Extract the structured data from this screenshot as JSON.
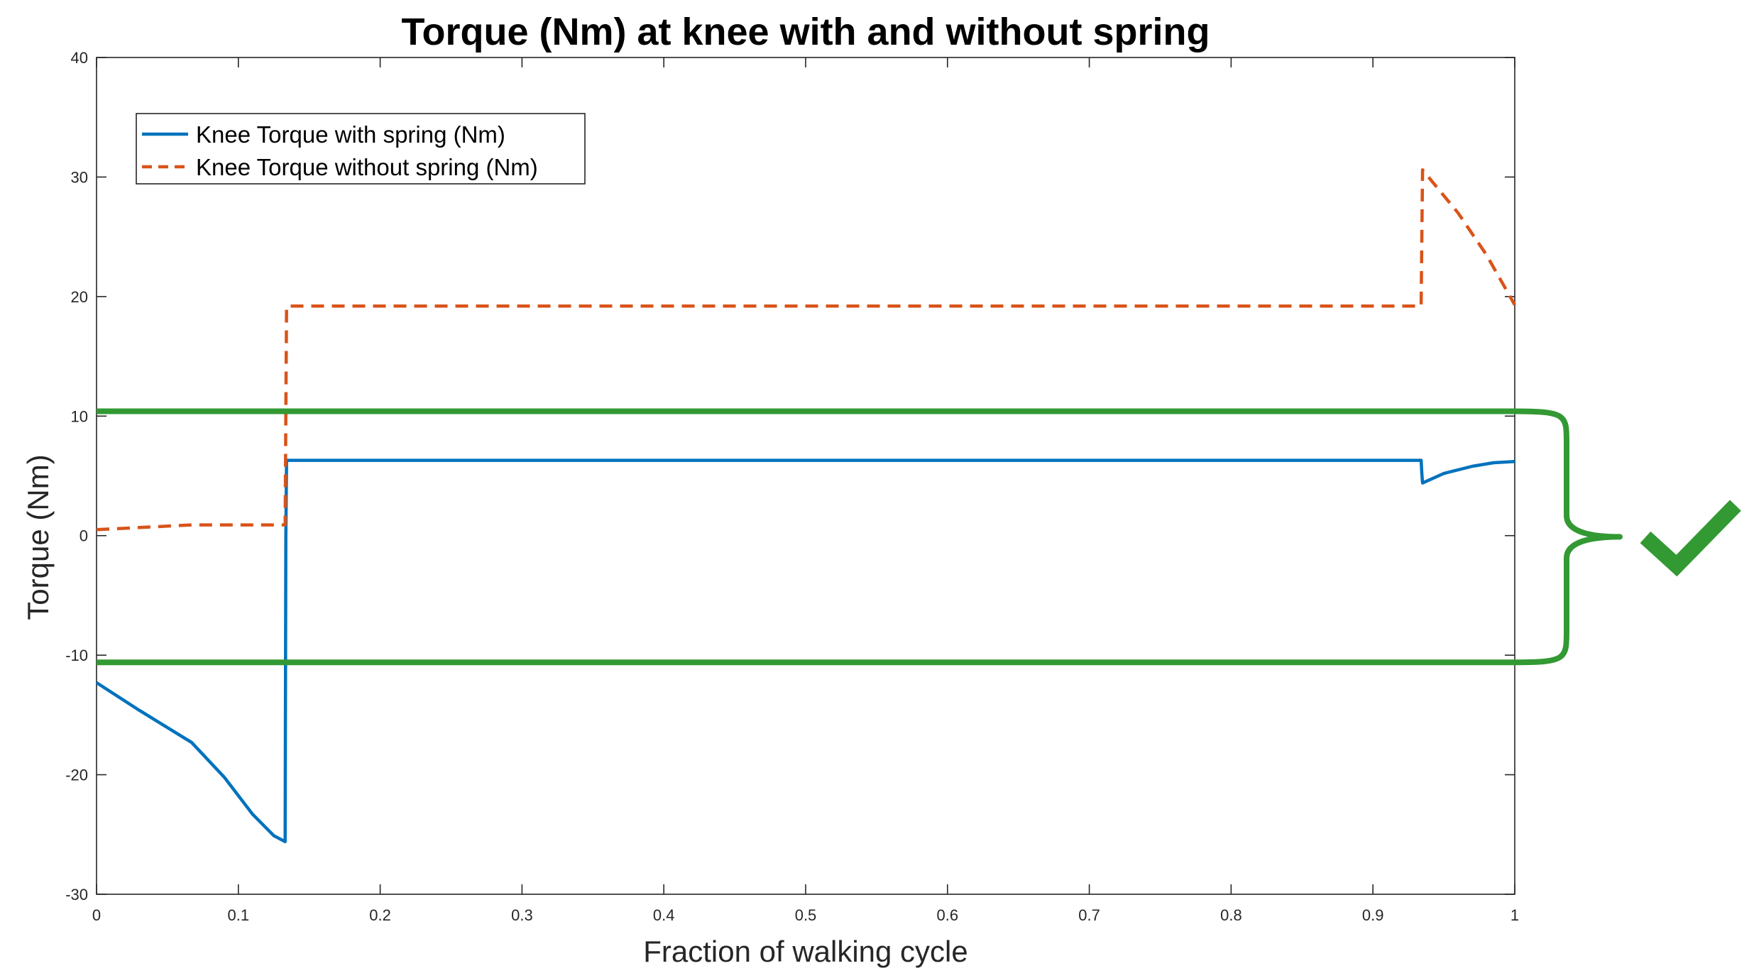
{
  "chart_data": {
    "type": "line",
    "title": "Torque (Nm) at knee with and without spring",
    "xlabel": "Fraction of walking cycle",
    "ylabel": "Torque (Nm)",
    "xlim": [
      0,
      1
    ],
    "ylim": [
      -30,
      40
    ],
    "xticks": [
      0,
      0.1,
      0.2,
      0.3,
      0.4,
      0.5,
      0.6,
      0.7,
      0.8,
      0.9,
      1
    ],
    "xtick_labels": [
      "0",
      "0.1",
      "0.2",
      "0.3",
      "0.4",
      "0.5",
      "0.6",
      "0.7",
      "0.8",
      "0.9",
      "1"
    ],
    "yticks": [
      -30,
      -20,
      -10,
      0,
      10,
      20,
      30,
      40
    ],
    "ytick_labels": [
      "-30",
      "-20",
      "-10",
      "0",
      "10",
      "20",
      "30",
      "40"
    ],
    "grid": false,
    "box": true,
    "legend": {
      "location": "top-left"
    },
    "series": [
      {
        "name": "Knee Torque with spring (Nm)",
        "style": "solid",
        "color": "#0072BD",
        "x": [
          0,
          0.03,
          0.067,
          0.09,
          0.11,
          0.125,
          0.133,
          0.1335,
          0.134,
          0.5,
          0.934,
          0.9345,
          0.935,
          0.95,
          0.97,
          0.985,
          1
        ],
        "y": [
          -12.3,
          -14.6,
          -17.3,
          -20.2,
          -23.3,
          -25.1,
          -25.6,
          0,
          6.3,
          6.3,
          6.3,
          5.2,
          4.4,
          5.2,
          5.8,
          6.1,
          6.2
        ]
      },
      {
        "name": "Knee Torque without spring (Nm)",
        "style": "dashed",
        "color": "#D95319",
        "x": [
          0,
          0.067,
          0.133,
          0.1335,
          0.134,
          0.5,
          0.934,
          0.9345,
          0.935,
          0.96,
          0.98,
          1
        ],
        "y": [
          0.5,
          0.9,
          0.9,
          10,
          19.2,
          19.2,
          19.2,
          25,
          30.6,
          27.0,
          23.5,
          19.3
        ]
      }
    ],
    "annotations": [
      {
        "type": "horizontal-line",
        "y": 10.4,
        "color": "#339933"
      },
      {
        "type": "horizontal-line",
        "y": -10.6,
        "color": "#339933"
      },
      {
        "type": "brace",
        "y_range": [
          -10.6,
          10.4
        ],
        "color": "#339933"
      },
      {
        "type": "checkmark",
        "color": "#339933"
      }
    ]
  }
}
